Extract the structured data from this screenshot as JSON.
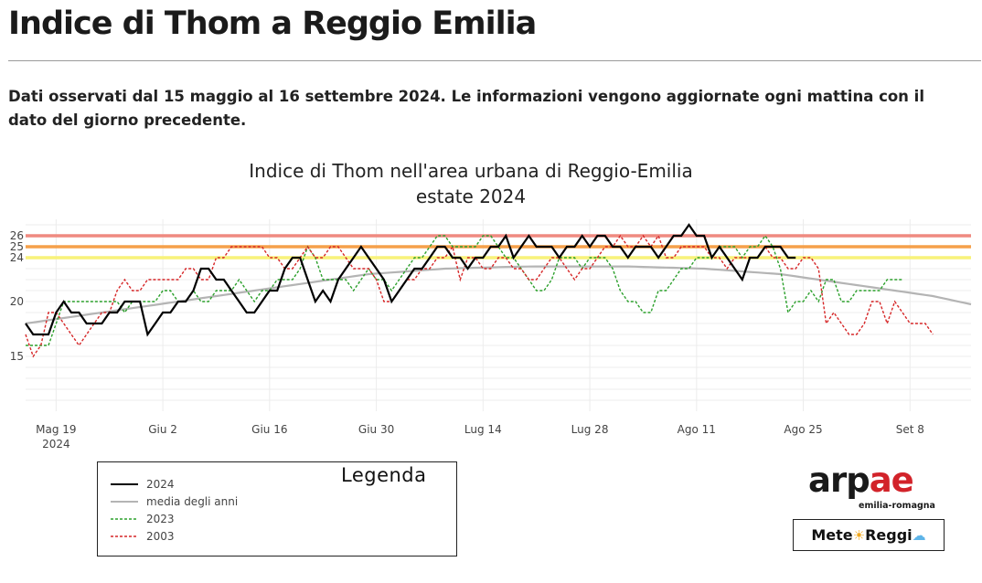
{
  "page": {
    "title": "Indice di Thom a Reggio Emilia",
    "intro": "Dati osservati dal 15 maggio al 16 settembre 2024. Le informazioni vengono aggiornate ogni mattina con il dato del giorno precedente."
  },
  "chart_data": {
    "type": "line",
    "title_line1": "Indice di Thom nell'area urbana di Reggio-Emilia",
    "title_line2": "estate 2024",
    "xlabel": "",
    "ylabel": "",
    "start_day": 0,
    "xlim": [
      0,
      124
    ],
    "ylim": [
      10,
      27.5
    ],
    "y_ticks": [
      15,
      20,
      24,
      25,
      26
    ],
    "x_ticks": [
      {
        "day": 4,
        "label": "Mag 19",
        "sublabel": "2024"
      },
      {
        "day": 18,
        "label": "Giu 2",
        "sublabel": ""
      },
      {
        "day": 32,
        "label": "Giu 16",
        "sublabel": ""
      },
      {
        "day": 46,
        "label": "Giu 30",
        "sublabel": ""
      },
      {
        "day": 60,
        "label": "Lug 14",
        "sublabel": ""
      },
      {
        "day": 74,
        "label": "Lug 28",
        "sublabel": ""
      },
      {
        "day": 88,
        "label": "Ago 11",
        "sublabel": ""
      },
      {
        "day": 102,
        "label": "Ago 25",
        "sublabel": ""
      },
      {
        "day": 116,
        "label": "Set 8",
        "sublabel": ""
      }
    ],
    "threshold_lines": [
      {
        "y": 26,
        "color": "#ef8a80"
      },
      {
        "y": 25,
        "color": "#f5a04a"
      },
      {
        "y": 24,
        "color": "#f8f27a"
      }
    ],
    "series": [
      {
        "name": "2024",
        "color": "#000000",
        "dash": "solid",
        "values": [
          18,
          17,
          17,
          17,
          19,
          20,
          19,
          19,
          18,
          18,
          18,
          19,
          19,
          20,
          20,
          20,
          17,
          18,
          19,
          19,
          20,
          20,
          21,
          23,
          23,
          22,
          22,
          21,
          20,
          19,
          19,
          20,
          21,
          21,
          23,
          24,
          24,
          22,
          20,
          21,
          20,
          22,
          23,
          24,
          25,
          24,
          23,
          22,
          20,
          21,
          22,
          23,
          23,
          24,
          25,
          25,
          24,
          24,
          23,
          24,
          24,
          25,
          25,
          26,
          24,
          25,
          26,
          25,
          25,
          25,
          24,
          25,
          25,
          26,
          25,
          26,
          26,
          25,
          25,
          24,
          25,
          25,
          25,
          24,
          25,
          26,
          26,
          27,
          26,
          26,
          24,
          25,
          24,
          23,
          22,
          24,
          24,
          25,
          25,
          25,
          24,
          24
        ]
      },
      {
        "name": "media degli anni",
        "color": "#b4b4b4",
        "dash": "solid",
        "values": [
          18.0,
          18.1,
          18.2,
          18.3,
          18.4,
          18.5,
          18.6,
          18.7,
          18.8,
          18.9,
          19.0,
          19.1,
          19.2,
          19.3,
          19.4,
          19.5,
          19.6,
          19.7,
          19.8,
          19.9,
          20.0,
          20.1,
          20.2,
          20.3,
          20.4,
          20.5,
          20.6,
          20.7,
          20.8,
          20.9,
          21.0,
          21.1,
          21.2,
          21.3,
          21.4,
          21.5,
          21.6,
          21.7,
          21.8,
          21.9,
          22.0,
          22.1,
          22.2,
          22.3,
          22.4,
          22.5,
          22.55,
          22.6,
          22.65,
          22.7,
          22.75,
          22.8,
          22.85,
          22.9,
          22.95,
          23.0,
          23.02,
          23.04,
          23.06,
          23.08,
          23.1,
          23.12,
          23.14,
          23.16,
          23.17,
          23.18,
          23.19,
          23.2,
          23.2,
          23.2,
          23.2,
          23.2,
          23.2,
          23.2,
          23.2,
          23.2,
          23.2,
          23.2,
          23.2,
          23.2,
          23.18,
          23.16,
          23.14,
          23.12,
          23.1,
          23.08,
          23.06,
          23.04,
          23.02,
          23.0,
          22.95,
          22.9,
          22.85,
          22.8,
          22.75,
          22.7,
          22.65,
          22.6,
          22.55,
          22.5,
          22.4,
          22.3,
          22.2,
          22.1,
          22.0,
          21.9,
          21.8,
          21.7,
          21.6,
          21.5,
          21.4,
          21.3,
          21.2,
          21.1,
          21.0,
          20.9,
          20.8,
          20.7,
          20.6,
          20.5,
          20.35,
          20.2,
          20.05,
          19.9,
          19.75
        ]
      },
      {
        "name": "2023",
        "color": "#2ca02c",
        "dash": "dotted",
        "values": [
          16,
          16,
          16,
          16,
          18,
          20,
          20,
          20,
          20,
          20,
          20,
          20,
          20,
          19,
          20,
          20,
          20,
          20,
          21,
          21,
          20,
          20,
          21,
          20,
          20,
          21,
          21,
          21,
          22,
          21,
          20,
          21,
          21,
          22,
          22,
          22,
          23,
          25,
          24,
          22,
          22,
          22,
          22,
          21,
          22,
          23,
          22,
          22,
          21,
          22,
          23,
          24,
          24,
          25,
          26,
          26,
          25,
          25,
          25,
          25,
          26,
          26,
          25,
          24,
          24,
          23,
          22,
          21,
          21,
          22,
          24,
          24,
          24,
          23,
          24,
          24,
          24,
          23,
          21,
          20,
          20,
          19,
          19,
          21,
          21,
          22,
          23,
          23,
          24,
          24,
          24,
          25,
          25,
          25,
          24,
          25,
          25,
          26,
          25,
          23,
          19,
          20,
          20,
          21,
          20,
          22,
          22,
          20,
          20,
          21,
          21,
          21,
          21,
          22,
          22,
          22
        ]
      },
      {
        "name": "2003",
        "color": "#d62728",
        "dash": "dotted",
        "values": [
          17,
          15,
          16,
          19,
          19,
          18,
          17,
          16,
          17,
          18,
          19,
          19,
          21,
          22,
          21,
          21,
          22,
          22,
          22,
          22,
          22,
          23,
          23,
          22,
          22,
          24,
          24,
          25,
          25,
          25,
          25,
          25,
          24,
          24,
          23,
          23,
          24,
          25,
          24,
          24,
          25,
          25,
          24,
          23,
          23,
          23,
          22,
          20,
          20,
          21,
          22,
          22,
          23,
          23,
          24,
          24,
          25,
          22,
          24,
          24,
          23,
          23,
          24,
          24,
          23,
          23,
          22,
          22,
          23,
          24,
          24,
          23,
          22,
          23,
          23,
          24,
          25,
          25,
          26,
          25,
          25,
          26,
          25,
          26,
          24,
          24,
          25,
          25,
          25,
          25,
          24,
          24,
          23,
          24,
          24,
          24,
          24,
          25,
          24,
          24,
          23,
          23,
          24,
          24,
          23,
          18,
          19,
          18,
          17,
          17,
          18,
          20,
          20,
          18,
          20,
          19,
          18,
          18,
          18,
          17
        ]
      }
    ]
  },
  "legend": {
    "title": "Legenda",
    "items": [
      {
        "label": "2024",
        "color": "#000000",
        "dash": "solid"
      },
      {
        "label": "media degli anni",
        "color": "#b4b4b4",
        "dash": "solid"
      },
      {
        "label": "2023",
        "color": "#2ca02c",
        "dash": "dotted"
      },
      {
        "label": "2003",
        "color": "#d62728",
        "dash": "dotted"
      }
    ]
  },
  "logos": {
    "arpae_main_1": "arp",
    "arpae_main_2": "ae",
    "arpae_sub": "emilia-romagna",
    "meteo_part1": "Mete",
    "meteo_part2": " Reggi",
    "sun_icon": "☀",
    "cloud_icon": "☁"
  }
}
